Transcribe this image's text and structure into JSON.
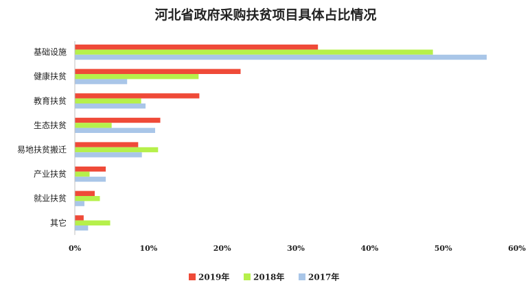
{
  "chart_data": {
    "type": "bar",
    "orientation": "horizontal",
    "title": "河北省政府采购扶贫项目具体占比情况",
    "categories": [
      "基础设施",
      "健康扶贫",
      "教育扶贫",
      "生态扶贫",
      "易地扶贫搬迁",
      "产业扶贫",
      "就业扶贫",
      "其它"
    ],
    "series": [
      {
        "name": "2019年",
        "color": "#ef4a38",
        "values": [
          33.0,
          22.5,
          16.9,
          11.6,
          8.6,
          4.2,
          2.7,
          1.2
        ]
      },
      {
        "name": "2018年",
        "color": "#b6f04b",
        "values": [
          48.6,
          16.8,
          9.0,
          5.0,
          11.3,
          2.0,
          3.4,
          4.8
        ]
      },
      {
        "name": "2017年",
        "color": "#a9c6e8",
        "values": [
          55.9,
          7.1,
          9.6,
          10.9,
          9.1,
          4.2,
          1.3,
          1.8
        ]
      }
    ],
    "xlim": [
      0,
      60
    ],
    "ticks": [
      "0%",
      "10%",
      "20%",
      "30%",
      "40%",
      "50%",
      "60%"
    ],
    "tick_values": [
      0,
      10,
      20,
      30,
      40,
      50,
      60
    ],
    "legend_position": "bottom",
    "grid": false
  }
}
